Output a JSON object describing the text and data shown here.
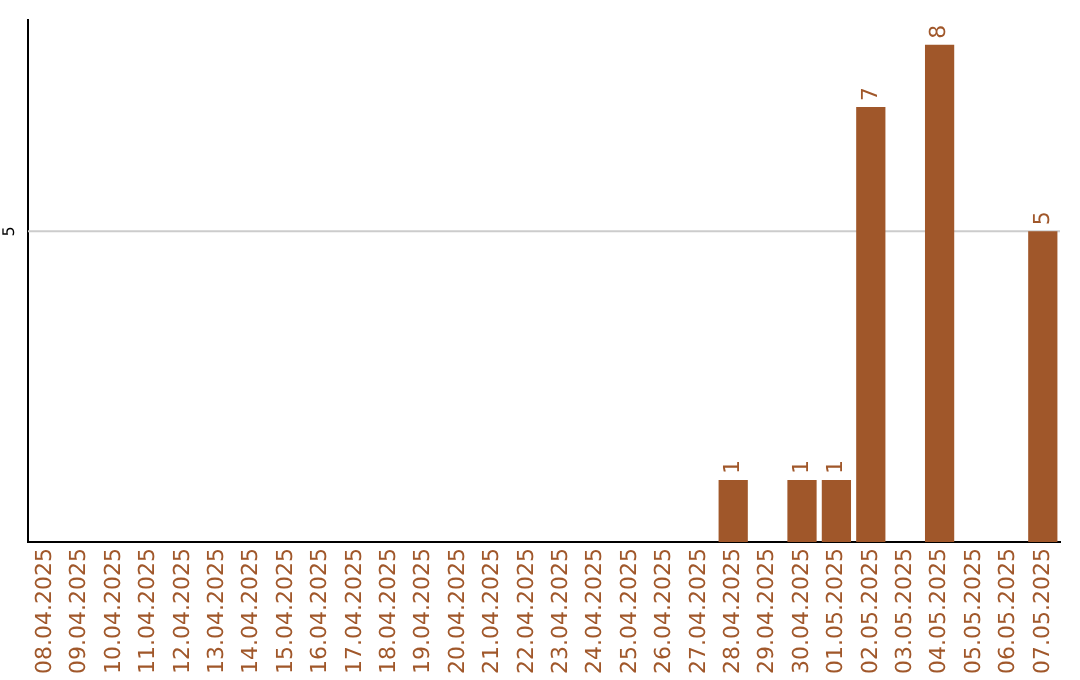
{
  "chart_data": {
    "type": "bar",
    "categories": [
      "08.04.2025",
      "09.04.2025",
      "10.04.2025",
      "11.04.2025",
      "12.04.2025",
      "13.04.2025",
      "14.04.2025",
      "15.04.2025",
      "16.04.2025",
      "17.04.2025",
      "18.04.2025",
      "19.04.2025",
      "20.04.2025",
      "21.04.2025",
      "22.04.2025",
      "23.04.2025",
      "24.04.2025",
      "25.04.2025",
      "26.04.2025",
      "27.04.2025",
      "28.04.2025",
      "29.04.2025",
      "30.04.2025",
      "01.05.2025",
      "02.05.2025",
      "03.05.2025",
      "04.05.2025",
      "05.05.2025",
      "06.05.2025",
      "07.05.2025"
    ],
    "values": [
      null,
      null,
      null,
      null,
      null,
      null,
      null,
      null,
      null,
      null,
      null,
      null,
      null,
      null,
      null,
      null,
      null,
      null,
      null,
      null,
      1,
      null,
      1,
      1,
      7,
      null,
      8,
      null,
      null,
      5
    ],
    "data_labels": true,
    "color": "#a0572a",
    "ylim": [
      0,
      8.4
    ],
    "ref_lines": [
      {
        "axis": "y",
        "value": 5,
        "label": "5",
        "color": "#cccccc"
      }
    ]
  }
}
